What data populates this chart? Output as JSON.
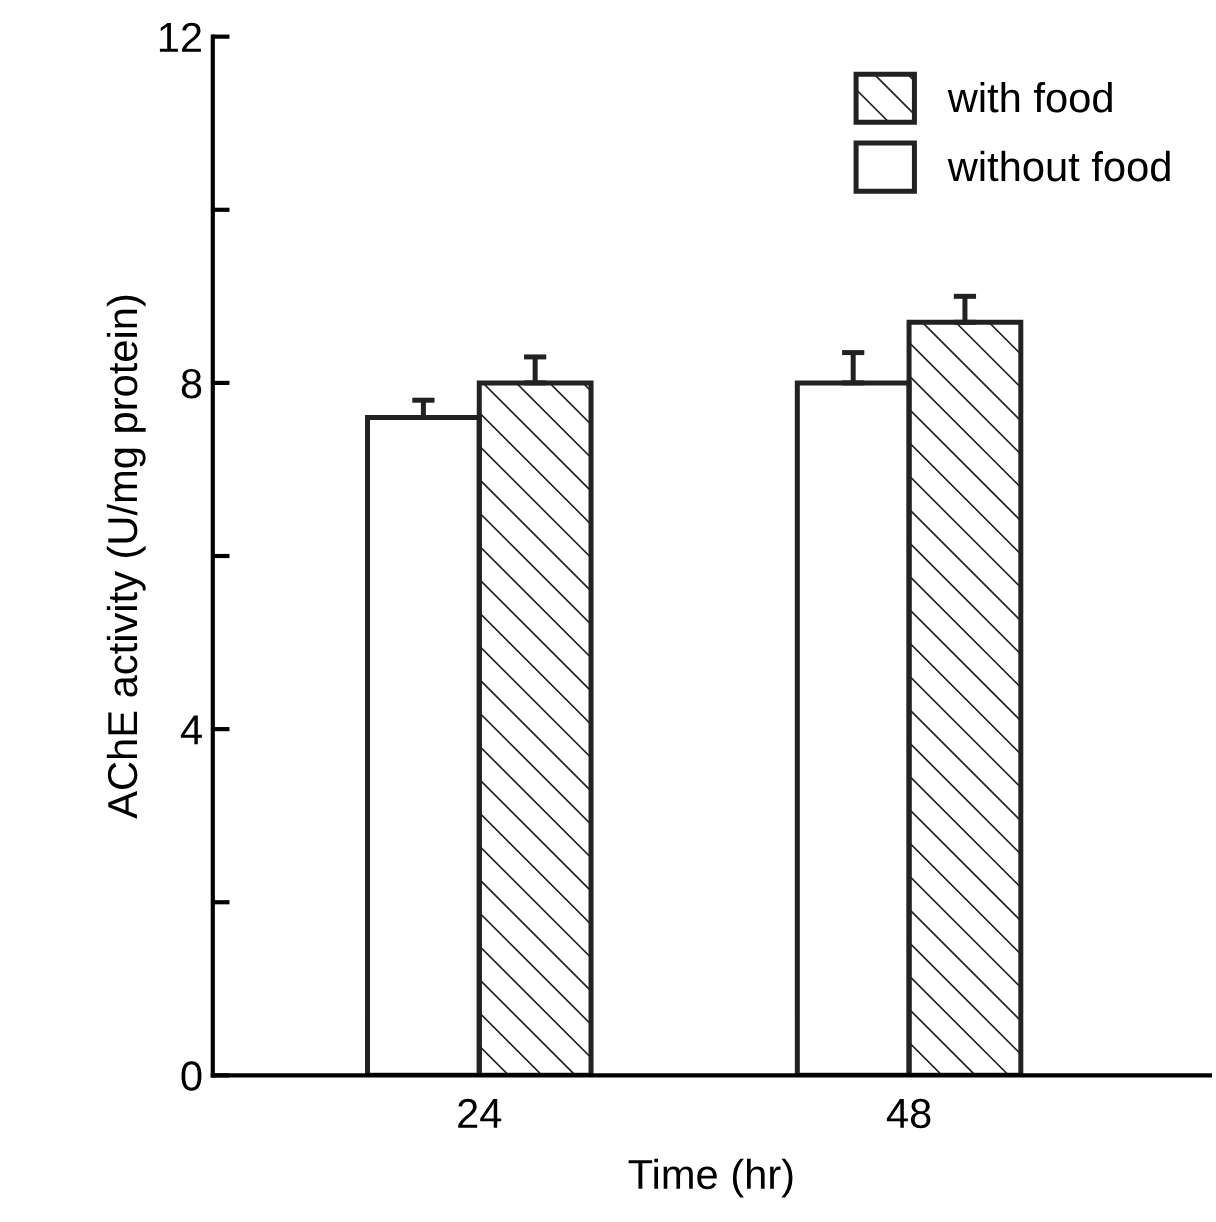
{
  "chart_data": {
    "type": "bar",
    "xlabel": "Time (hr)",
    "ylabel": "AChE activity (U/mg protein)",
    "categories": [
      "24",
      "48"
    ],
    "series": [
      {
        "name": "without food",
        "color": "#ffffff",
        "values": [
          7.6,
          8.0
        ],
        "errors": [
          [
            7.6,
            7.8
          ],
          [
            8.0,
            8.35
          ]
        ]
      },
      {
        "name": "with food",
        "color": "#222222",
        "values": [
          8.0,
          8.7
        ],
        "errors": [
          [
            8.0,
            8.3
          ],
          [
            8.7,
            9.0
          ]
        ]
      }
    ],
    "ylim": [
      0,
      12
    ],
    "yticks": [
      0,
      {
        "value": 2,
        "label": null
      },
      4,
      {
        "value": 6,
        "label": null
      },
      8,
      {
        "value": 10,
        "label": null
      },
      12
    ],
    "grid": false,
    "legend": "top right"
  }
}
